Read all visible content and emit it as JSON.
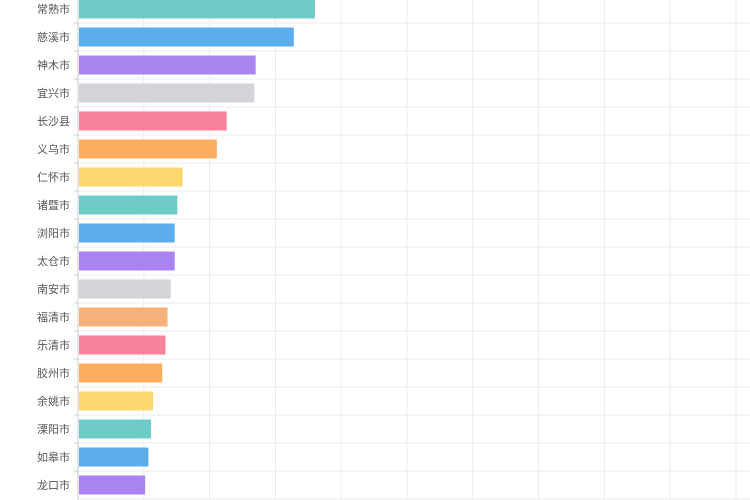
{
  "chart_data": {
    "type": "bar",
    "orientation": "horizontal",
    "title": "",
    "xlabel": "",
    "ylabel": "",
    "grid": true,
    "legend": "none",
    "xlim": [
      0,
      1000
    ],
    "categories": [
      "常熟市",
      "慈溪市",
      "神木市",
      "宜兴市",
      "长沙县",
      "义乌市",
      "仁怀市",
      "诸暨市",
      "浏阳市",
      "太仓市",
      "南安市",
      "福清市",
      "乐清市",
      "胶州市",
      "余姚市",
      "溧阳市",
      "如皋市",
      "龙口市"
    ],
    "values": [
      360,
      328,
      270,
      268,
      226,
      211,
      159,
      151,
      147,
      147,
      141,
      136,
      133,
      128,
      114,
      111,
      107,
      102
    ],
    "colors": [
      "#6ECBC7",
      "#5BADEB",
      "#A984F0",
      "#D3D3D8",
      "#F7829D",
      "#FCAD5F",
      "#FCD86F",
      "#6ECBC7",
      "#5BADEB",
      "#A984F0",
      "#D3D3D8",
      "#F6B07C",
      "#F7829D",
      "#FCAD5F",
      "#FCD86F",
      "#6ECBC7",
      "#5BADEB",
      "#A984F0"
    ]
  },
  "colors": {
    "grid": "#ebebeb",
    "axis": "#cccccc",
    "label": "#555555"
  }
}
